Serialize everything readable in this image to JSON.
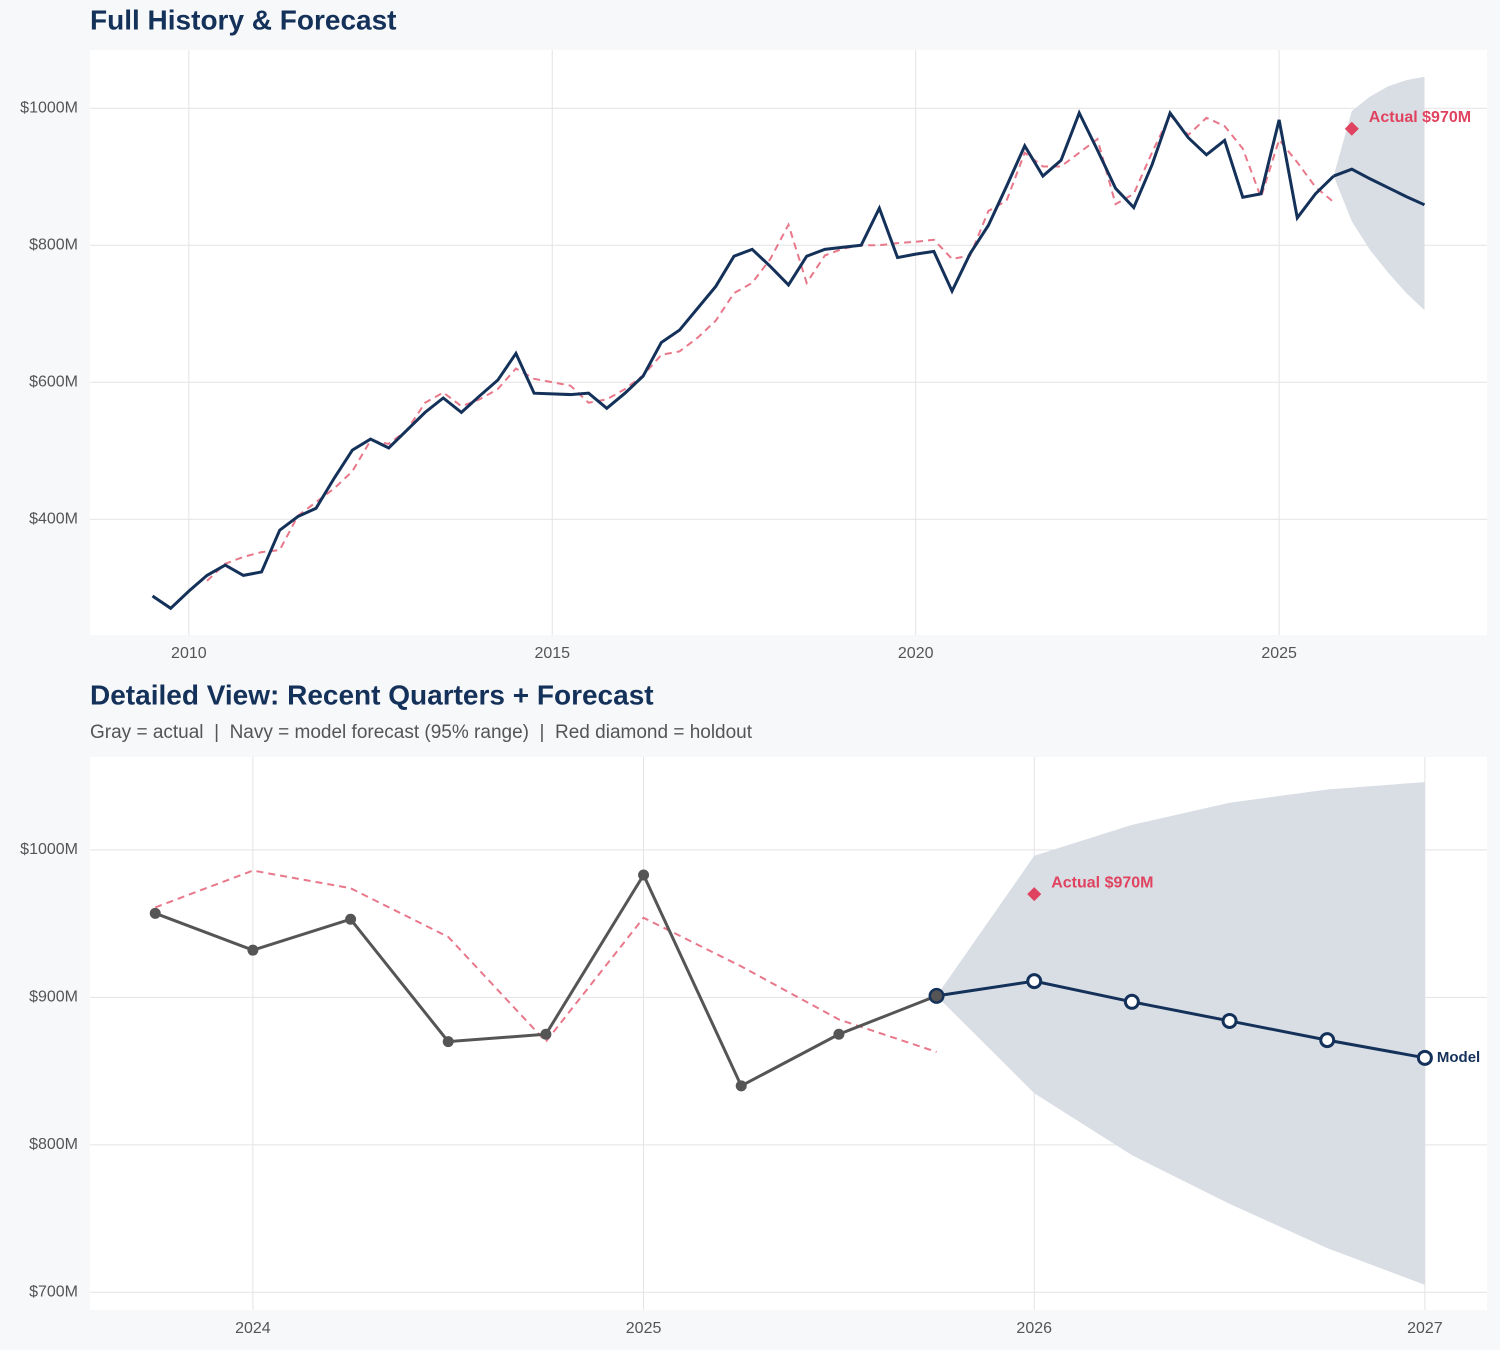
{
  "chart_data": [
    {
      "type": "line",
      "title": "Full History & Forecast",
      "xlim": [
        2008.64,
        2027.86
      ],
      "ylim": [
        231,
        1085
      ],
      "grid": true,
      "xticks": [
        2010,
        2015,
        2020,
        2025
      ],
      "yticks": [
        {
          "value": 400,
          "label": "$400M"
        },
        {
          "value": 600,
          "label": "$600M"
        },
        {
          "value": 800,
          "label": "$800M"
        },
        {
          "value": 1000,
          "label": "$1000M"
        }
      ],
      "band": {
        "color": "#d9dee5",
        "x": [
          2025.75,
          2026.0,
          2026.25,
          2026.5,
          2026.75,
          2027.0
        ],
        "lower": [
          901,
          835,
          793,
          760,
          730,
          705
        ],
        "upper": [
          901,
          996,
          1017,
          1032,
          1041,
          1046
        ]
      },
      "series": [
        {
          "color": "#e8788a",
          "style": "dashed",
          "x": [
            2010.25,
            2010.5,
            2010.75,
            2011.0,
            2011.25,
            2011.5,
            2011.75,
            2012.0,
            2012.25,
            2012.5,
            2012.75,
            2013.0,
            2013.25,
            2013.5,
            2013.75,
            2014.0,
            2014.25,
            2014.5,
            2014.75,
            2015.0,
            2015.25,
            2015.5,
            2015.75,
            2016.0,
            2016.25,
            2016.5,
            2016.75,
            2017.0,
            2017.25,
            2017.5,
            2017.75,
            2018.0,
            2018.25,
            2018.5,
            2018.75,
            2019.0,
            2019.25,
            2019.5,
            2019.75,
            2020.0,
            2020.25,
            2020.5,
            2020.75,
            2021.0,
            2021.25,
            2021.5,
            2021.75,
            2022.0,
            2022.25,
            2022.5,
            2022.75,
            2023.0,
            2023.25,
            2023.5,
            2023.75,
            2024.0,
            2024.25,
            2024.5,
            2024.75,
            2025.0,
            2025.25,
            2025.5,
            2025.75
          ],
          "values": [
            310,
            335,
            345,
            352,
            355,
            405,
            425,
            445,
            470,
            515,
            510,
            530,
            570,
            585,
            565,
            575,
            590,
            620,
            605,
            600,
            595,
            570,
            575,
            590,
            610,
            640,
            645,
            665,
            690,
            730,
            745,
            780,
            830,
            745,
            785,
            795,
            800,
            800,
            803,
            805,
            808,
            780,
            785,
            850,
            865,
            935,
            915,
            915,
            935,
            955,
            860,
            875,
            935,
            990,
            961,
            986,
            974,
            941,
            870,
            954,
            921,
            885,
            863
          ]
        },
        {
          "color": "#14315a",
          "style": "solid",
          "x": [
            2025.75,
            2026.0,
            2026.25,
            2026.5,
            2026.75,
            2027.0
          ],
          "values": [
            901,
            911,
            897,
            884,
            871,
            859
          ]
        },
        {
          "color": "#14315a",
          "style": "solid",
          "x": [
            2009.5,
            2009.75,
            2010.0,
            2010.25,
            2010.5,
            2010.75,
            2011.0,
            2011.25,
            2011.5,
            2011.75,
            2012.0,
            2012.25,
            2012.5,
            2012.75,
            2013.0,
            2013.25,
            2013.5,
            2013.75,
            2014.0,
            2014.25,
            2014.5,
            2014.75,
            2015.0,
            2015.25,
            2015.5,
            2015.75,
            2016.0,
            2016.25,
            2016.5,
            2016.75,
            2017.0,
            2017.25,
            2017.5,
            2017.75,
            2018.0,
            2018.25,
            2018.5,
            2018.75,
            2019.0,
            2019.25,
            2019.5,
            2019.75,
            2020.0,
            2020.25,
            2020.5,
            2020.75,
            2021.0,
            2021.25,
            2021.5,
            2021.75,
            2022.0,
            2022.25,
            2022.5,
            2022.75,
            2023.0,
            2023.25,
            2023.5,
            2023.75,
            2024.0,
            2024.25,
            2024.5,
            2024.75,
            2025.0,
            2025.25,
            2025.5,
            2025.75
          ],
          "values": [
            288,
            270,
            295,
            318,
            333,
            318,
            323,
            384,
            404,
            416,
            460,
            501,
            517,
            504,
            530,
            556,
            577,
            556,
            580,
            603,
            642,
            584,
            583,
            582,
            584,
            562,
            584,
            609,
            658,
            676,
            708,
            740,
            784,
            794,
            769,
            742,
            784,
            794,
            797,
            800,
            854,
            782,
            787,
            791,
            733,
            788,
            829,
            886,
            945,
            901,
            924,
            993,
            939,
            883,
            855,
            917,
            993,
            957,
            932,
            953,
            870,
            875,
            983,
            840,
            875,
            901
          ]
        }
      ],
      "annotations": [
        {
          "x": 2026.0,
          "value": 970,
          "label": "Actual $970M",
          "color": "#e0435f"
        }
      ]
    },
    {
      "type": "line",
      "title": "Detailed View: Recent Quarters + Forecast",
      "subtitle": "Gray = actual  |  Navy = model forecast (95% range)  |  Red diamond = holdout",
      "xlim": [
        2023.583,
        2027.159
      ],
      "ylim": [
        688,
        1063
      ],
      "grid": true,
      "xticks": [
        2024,
        2025,
        2026,
        2027
      ],
      "yticks": [
        {
          "value": 700,
          "label": "$700M"
        },
        {
          "value": 800,
          "label": "$800M"
        },
        {
          "value": 900,
          "label": "$900M"
        },
        {
          "value": 1000,
          "label": "$1000M"
        }
      ],
      "band": {
        "color": "#d9dee5",
        "x": [
          2025.75,
          2026.0,
          2026.25,
          2026.5,
          2026.75,
          2027.0
        ],
        "lower": [
          901,
          835,
          793,
          760,
          730,
          705
        ],
        "upper": [
          901,
          996,
          1017,
          1032,
          1041,
          1046
        ]
      },
      "series": [
        {
          "color": "#e8788a",
          "style": "dashed",
          "x": [
            2023.75,
            2024.0,
            2024.25,
            2024.5,
            2024.75,
            2025.0,
            2025.25,
            2025.5,
            2025.75
          ],
          "values": [
            961,
            986,
            974,
            941,
            870,
            954,
            921,
            885,
            863
          ]
        },
        {
          "color": "#14315a",
          "style": "solid",
          "markers": "hollow",
          "end_label": "Model",
          "x": [
            2025.75,
            2026.0,
            2026.25,
            2026.5,
            2026.75,
            2027.0
          ],
          "values": [
            901,
            911,
            897,
            884,
            871,
            859
          ]
        },
        {
          "color": "#555555",
          "style": "solid",
          "markers": "filled",
          "x": [
            2023.75,
            2024.0,
            2024.25,
            2024.5,
            2024.75,
            2025.0,
            2025.25,
            2025.5,
            2025.75
          ],
          "values": [
            957,
            932,
            953,
            870,
            875,
            983,
            840,
            875,
            901
          ]
        }
      ],
      "annotations": [
        {
          "x": 2026.0,
          "value": 970,
          "label": "Actual $970M",
          "color": "#e0435f"
        }
      ]
    }
  ]
}
